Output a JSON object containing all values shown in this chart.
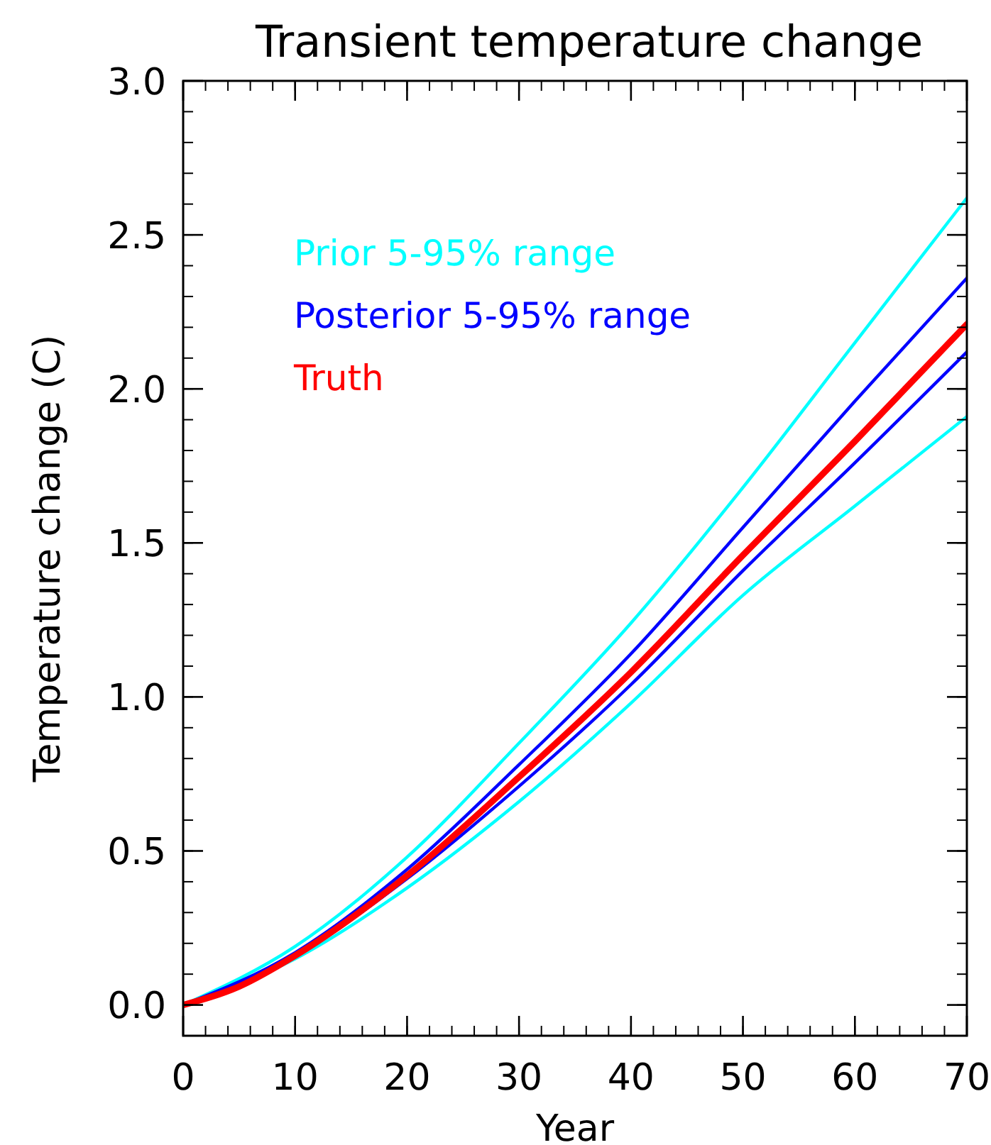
{
  "chart_data": {
    "type": "line",
    "title": "Transient temperature change",
    "xlabel": "Year",
    "ylabel": "Temperature change (C)",
    "xlim": [
      0,
      70
    ],
    "xticks": [
      0,
      10,
      20,
      30,
      40,
      50,
      60,
      70
    ],
    "ylim": [
      -0.1,
      3.0
    ],
    "yticks": [
      {
        "value": 0,
        "label": "0.0"
      },
      0.5,
      {
        "value": 1,
        "label": "1.0"
      },
      1.5,
      {
        "value": 2,
        "label": "2.0"
      },
      2.5,
      {
        "value": 3,
        "label": "3.0"
      }
    ],
    "legend": "top left",
    "grid": false,
    "marker": "none",
    "line_style": "solid",
    "series": [
      {
        "name": "Prior 5-95% range",
        "color": "#00ffff",
        "x": [
          0,
          10,
          20,
          30,
          40,
          50,
          60,
          70
        ],
        "values": [
          0,
          0.19,
          0.48,
          0.85,
          1.24,
          1.68,
          2.15,
          2.62
        ]
      },
      {
        "color": "#00ffff",
        "x": [
          0,
          10,
          20,
          30,
          40,
          50,
          60,
          70
        ],
        "values": [
          0,
          0.15,
          0.38,
          0.66,
          0.98,
          1.33,
          1.62,
          1.91
        ]
      },
      {
        "name": "Posterior 5-95% range",
        "color": "#0000ff",
        "x": [
          0,
          10,
          20,
          30,
          40,
          50,
          60,
          70
        ],
        "values": [
          0,
          0.17,
          0.44,
          0.78,
          1.14,
          1.55,
          1.96,
          2.36
        ]
      },
      {
        "color": "#0000ff",
        "x": [
          0,
          10,
          20,
          30,
          40,
          50,
          60,
          70
        ],
        "values": [
          0,
          0.16,
          0.41,
          0.71,
          1.04,
          1.41,
          1.76,
          2.12
        ]
      },
      {
        "name": "Truth",
        "color": "#ff0000",
        "x": [
          0,
          5,
          10,
          20,
          30,
          40,
          50,
          60,
          70
        ],
        "values": [
          0,
          0.06,
          0.16,
          0.42,
          0.74,
          1.08,
          1.46,
          1.83,
          2.21
        ]
      }
    ]
  }
}
